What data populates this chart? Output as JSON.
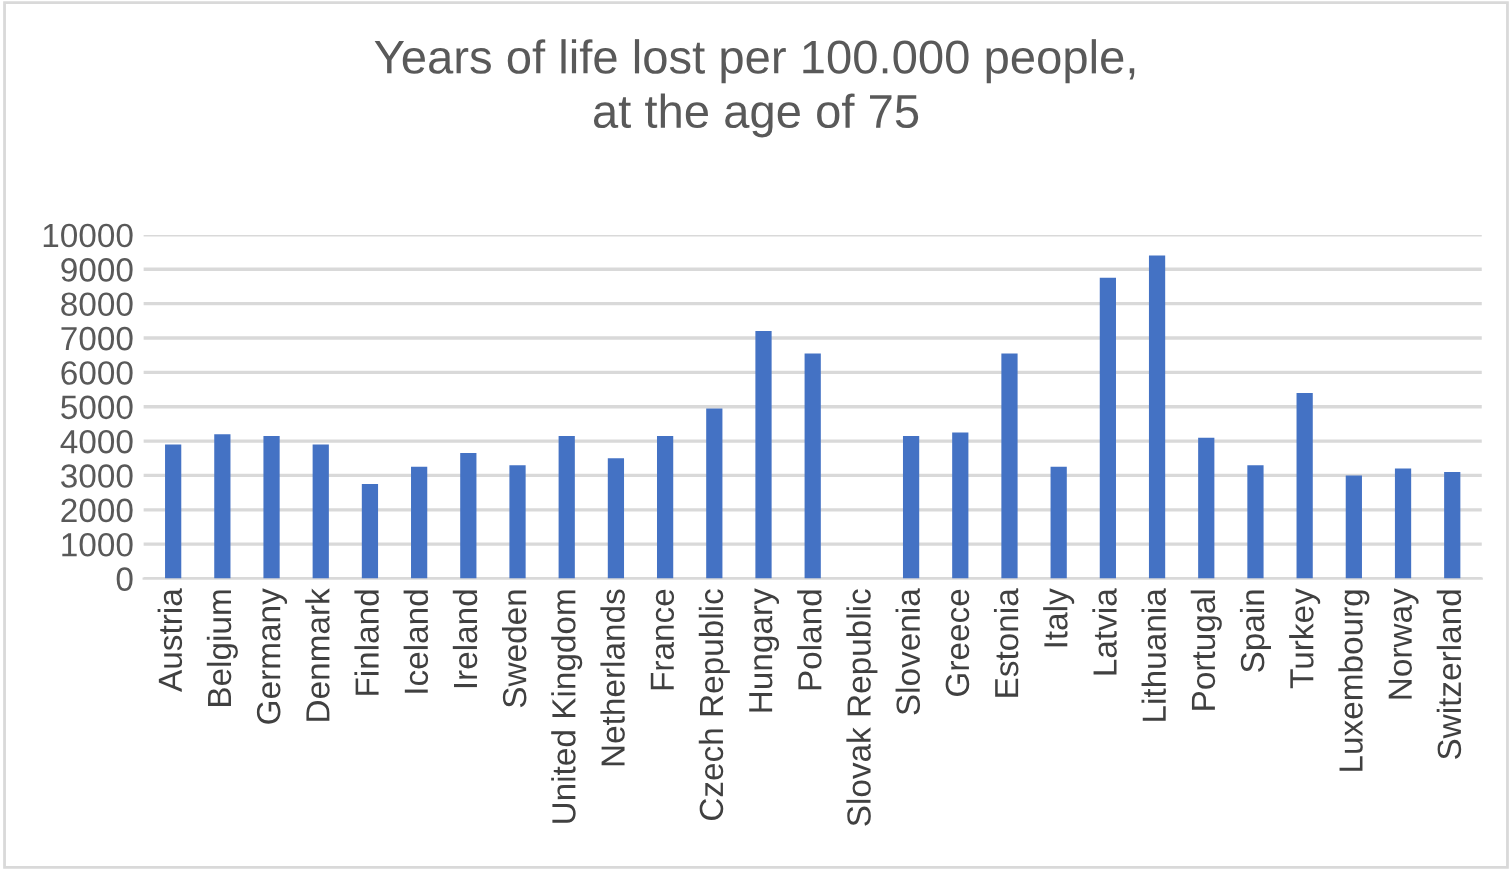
{
  "chart_data": {
    "type": "bar",
    "title": "Years of life lost per 100.000 people,\nat the age of 75",
    "categories": [
      "Austria",
      "Belgium",
      "Germany",
      "Denmark",
      "Finland",
      "Iceland",
      "Ireland",
      "Sweden",
      "United Kingdom",
      "Netherlands",
      "France",
      "Czech Republic",
      "Hungary",
      "Poland",
      "Slovak Republic",
      "Slovenia",
      "Greece",
      "Estonia",
      "Italy",
      "Latvia",
      "Lithuania",
      "Portugal",
      "Spain",
      "Turkey",
      "Luxembourg",
      "Norway",
      "Switzerland"
    ],
    "values": [
      3900,
      4200,
      4150,
      3900,
      2750,
      3250,
      3650,
      3300,
      4150,
      3500,
      4150,
      4950,
      7200,
      6550,
      null,
      4150,
      4250,
      6550,
      3250,
      8750,
      9400,
      4100,
      3300,
      5400,
      3000,
      3200,
      3100
    ],
    "color": "#4472c4",
    "ylim": [
      0,
      10000
    ],
    "yticks": [
      0,
      1000,
      2000,
      3000,
      4000,
      5000,
      6000,
      7000,
      8000,
      9000,
      10000
    ],
    "grid": "y",
    "legend": false
  }
}
